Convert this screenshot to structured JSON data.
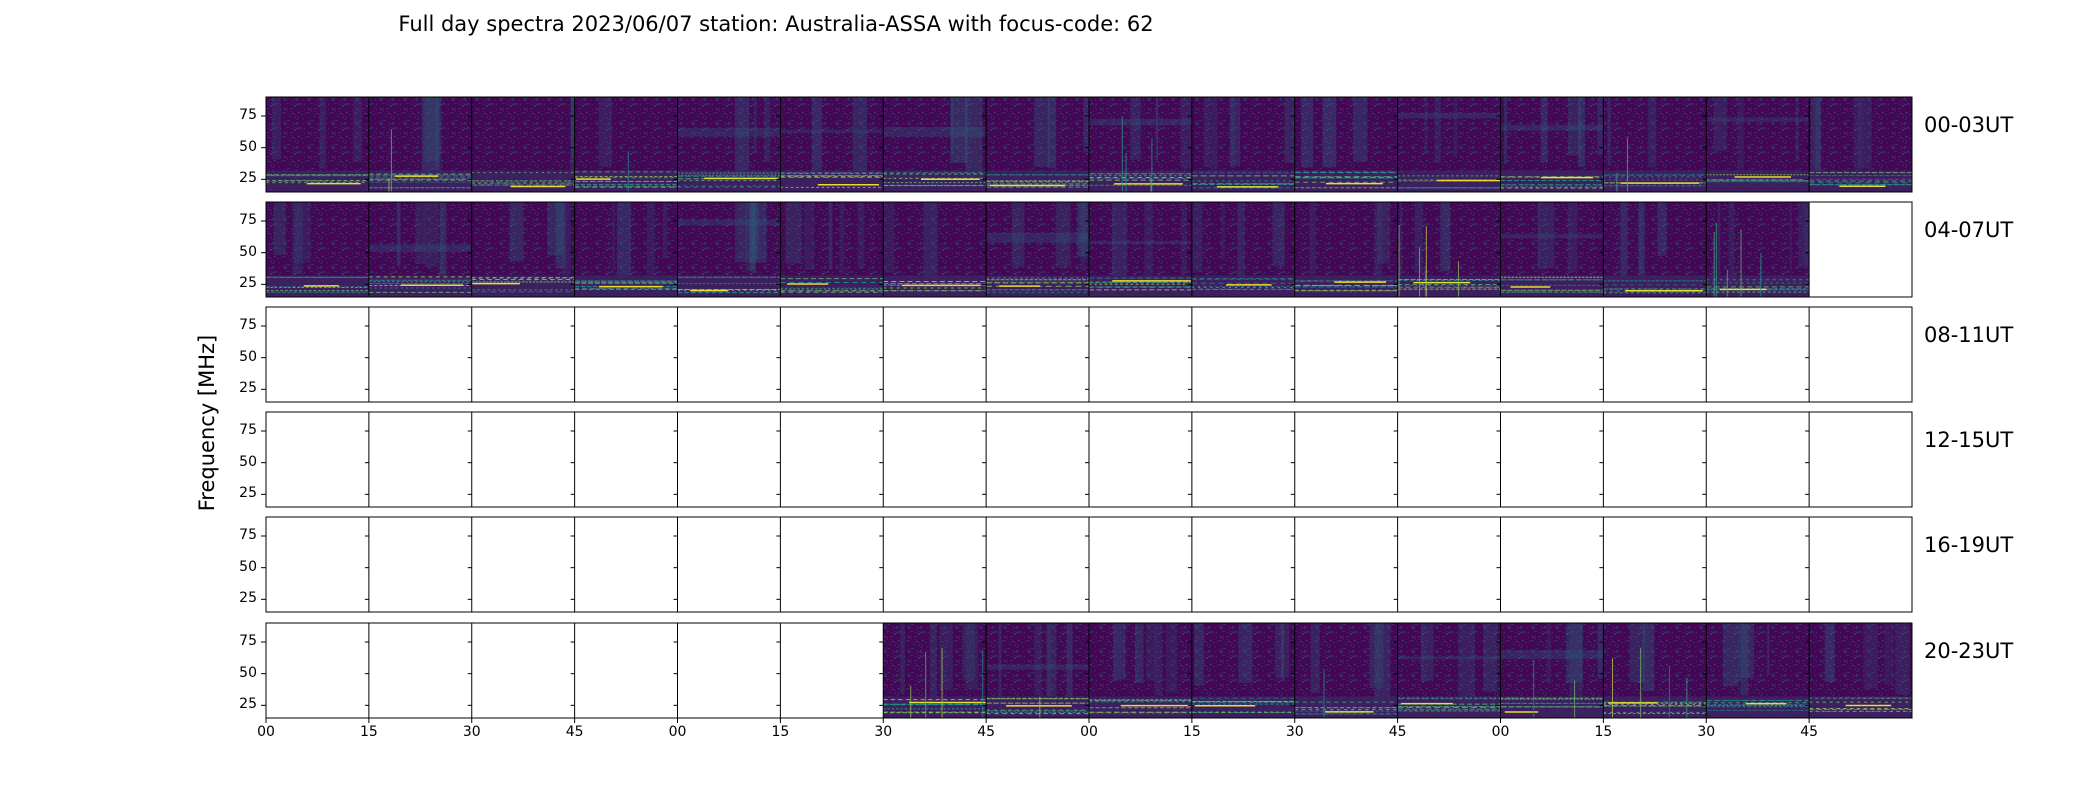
{
  "chart_data": {
    "type": "heatmap",
    "title": "Full day spectra 2023/06/07 station: Australia-ASSA with focus-code: 62",
    "ylabel": "Frequency [MHz]",
    "xlabel": "",
    "yticks": [
      "75",
      "50",
      "25"
    ],
    "ytick_values": [
      75,
      50,
      25
    ],
    "ylim": [
      15,
      90
    ],
    "xticks": [
      "00",
      "15",
      "30",
      "45",
      "00",
      "15",
      "30",
      "45",
      "00",
      "15",
      "30",
      "45",
      "00",
      "15",
      "30",
      "45"
    ],
    "panels_per_row": 16,
    "panel_minutes": 15,
    "colormap": "viridis",
    "colors": {
      "low": "#440154",
      "mid": "#21918c",
      "high": "#fde725"
    },
    "rows": [
      {
        "label": "00-03UT",
        "has_data": [
          true,
          true,
          true,
          true,
          true,
          true,
          true,
          true,
          true,
          true,
          true,
          true,
          true,
          true,
          true,
          true
        ]
      },
      {
        "label": "04-07UT",
        "has_data": [
          true,
          true,
          true,
          true,
          true,
          true,
          true,
          true,
          true,
          true,
          true,
          true,
          true,
          true,
          true,
          false
        ]
      },
      {
        "label": "08-11UT",
        "has_data": [
          false,
          false,
          false,
          false,
          false,
          false,
          false,
          false,
          false,
          false,
          false,
          false,
          false,
          false,
          false,
          false
        ]
      },
      {
        "label": "12-15UT",
        "has_data": [
          false,
          false,
          false,
          false,
          false,
          false,
          false,
          false,
          false,
          false,
          false,
          false,
          false,
          false,
          false,
          false
        ]
      },
      {
        "label": "16-19UT",
        "has_data": [
          false,
          false,
          false,
          false,
          false,
          false,
          false,
          false,
          false,
          false,
          false,
          false,
          false,
          false,
          false,
          false
        ]
      },
      {
        "label": "20-23UT",
        "has_data": [
          false,
          false,
          false,
          false,
          false,
          false,
          true,
          true,
          true,
          true,
          true,
          true,
          true,
          true,
          true,
          true
        ]
      }
    ]
  }
}
